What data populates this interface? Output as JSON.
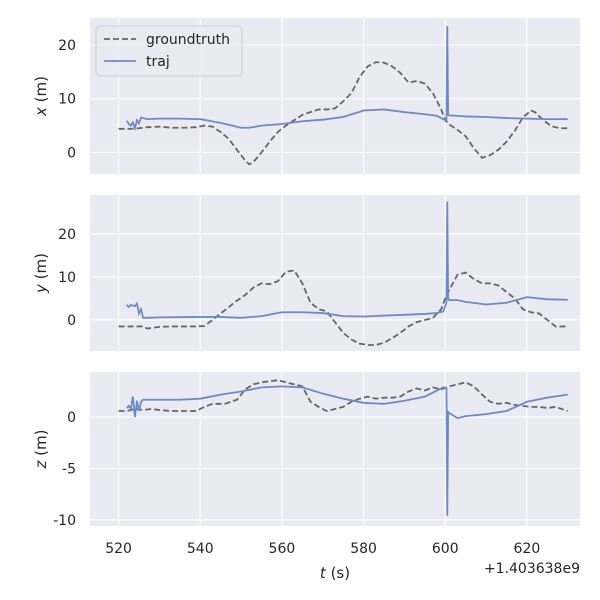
{
  "chart_data": {
    "type": "line",
    "shared_x": {
      "label": "t (s)",
      "label_var": "t",
      "label_unit": " (s)",
      "offset_label": "+1.403638e9",
      "range": [
        513,
        633
      ],
      "ticks": [
        520,
        540,
        560,
        580,
        600,
        620
      ]
    },
    "legend": {
      "placement": "top-left",
      "entries": [
        "groundtruth",
        "traj"
      ]
    },
    "colors": {
      "groundtruth": "#666666",
      "traj": "#6b8ac6"
    },
    "panels": [
      {
        "ylabel": "x (m)",
        "ylabel_var": "x",
        "ylabel_unit": " (m)",
        "ylim": [
          -4,
          25
        ],
        "yticks": [
          0,
          10,
          20
        ],
        "series": [
          {
            "name": "groundtruth",
            "style": "dashed",
            "x": [
              520,
              523,
              525,
              527,
              530,
              533,
              536,
              539,
              541,
              543,
              545,
              547,
              549,
              551,
              552,
              553,
              555,
              557,
              559,
              561,
              563,
              565,
              567,
              569,
              571,
              573,
              575,
              577,
              579,
              581,
              583,
              585,
              587,
              589,
              591,
              593,
              595,
              597,
              599,
              600,
              601,
              603,
              605,
              607,
              609,
              611,
              613,
              615,
              617,
              619,
              621,
              622,
              624,
              626,
              628,
              630
            ],
            "y": [
              4.4,
              4.4,
              4.5,
              4.7,
              4.8,
              4.6,
              4.6,
              4.7,
              5.0,
              4.8,
              3.8,
              2.5,
              0.5,
              -1.5,
              -2.2,
              -1.8,
              0.0,
              2.0,
              3.8,
              5.0,
              6.0,
              7.0,
              7.5,
              8.0,
              8.0,
              8.2,
              9.5,
              11.0,
              14.0,
              16.0,
              16.8,
              16.7,
              16.0,
              14.8,
              13.0,
              13.3,
              12.8,
              11.0,
              8.0,
              6.0,
              5.2,
              4.2,
              3.0,
              0.8,
              -1.0,
              -0.5,
              0.5,
              2.0,
              4.0,
              6.5,
              7.8,
              7.5,
              6.0,
              4.9,
              4.5,
              4.5
            ]
          },
          {
            "name": "traj",
            "style": "solid",
            "x": [
              522,
              522.5,
              523,
              523.5,
              524,
              524.5,
              525,
              525.5,
              526,
              527,
              530,
              535,
              540,
              545,
              550,
              552,
              555,
              560,
              565,
              570,
              575,
              580,
              585,
              590,
              595,
              598,
              599.5,
              600.3,
              600.5,
              600.7,
              601,
              603,
              605,
              610,
              615,
              620,
              625,
              630
            ],
            "y": [
              5.9,
              5.3,
              5.0,
              5.6,
              4.5,
              6.0,
              5.4,
              6.5,
              6.4,
              6.2,
              6.3,
              6.3,
              6.2,
              5.5,
              4.6,
              4.6,
              5.0,
              5.3,
              5.8,
              6.1,
              6.6,
              7.8,
              8.0,
              7.5,
              7.1,
              6.8,
              6.2,
              6.0,
              23.5,
              7.0,
              6.9,
              6.8,
              6.7,
              6.6,
              6.4,
              6.3,
              6.2,
              6.2
            ]
          }
        ]
      },
      {
        "ylabel": "y (m)",
        "ylabel_var": "y",
        "ylabel_unit": " (m)",
        "ylim": [
          -7.2,
          29
        ],
        "yticks": [
          0,
          10,
          20
        ],
        "series": [
          {
            "name": "groundtruth",
            "style": "dashed",
            "x": [
              520,
              524,
              526,
              527,
              530,
              533,
              536,
              539,
              541,
              543,
              545,
              547,
              549,
              551,
              553,
              555,
              557,
              559,
              561,
              563,
              565,
              567,
              569,
              571,
              573,
              575,
              577,
              579,
              581,
              583,
              585,
              587,
              589,
              591,
              593,
              595,
              597,
              599,
              600,
              601,
              603,
              605,
              607,
              609,
              611,
              613,
              615,
              617,
              619,
              621,
              623,
              625,
              627,
              630
            ],
            "y": [
              -1.5,
              -1.5,
              -1.5,
              -2.0,
              -1.6,
              -1.5,
              -1.5,
              -1.5,
              -1.4,
              0.0,
              1.5,
              3.0,
              4.5,
              5.8,
              7.5,
              8.5,
              8.3,
              9.0,
              11.2,
              11.5,
              8.5,
              4.0,
              2.5,
              2.0,
              -0.5,
              -3.0,
              -4.5,
              -5.5,
              -5.8,
              -5.8,
              -5.3,
              -4.2,
              -3.0,
              -1.5,
              -0.5,
              0.0,
              0.5,
              2.5,
              5.0,
              7.0,
              10.5,
              11.0,
              9.5,
              8.5,
              8.5,
              8.0,
              6.5,
              5.0,
              2.5,
              1.8,
              1.5,
              0.0,
              -1.5,
              -1.5
            ]
          },
          {
            "name": "traj",
            "style": "solid",
            "x": [
              522,
              522.5,
              523,
              524,
              524.5,
              525,
              525.5,
              526,
              526.5,
              527,
              530,
              540,
              545,
              550,
              555,
              560,
              565,
              570,
              575,
              580,
              585,
              590,
              595,
              598,
              599.5,
              600.3,
              600.5,
              600.7,
              601,
              603,
              605,
              610,
              615,
              620,
              625,
              630
            ],
            "y": [
              3.5,
              3.0,
              3.5,
              3.2,
              3.8,
              1.5,
              2.5,
              0.5,
              0.5,
              0.5,
              0.6,
              0.7,
              0.7,
              0.5,
              0.9,
              1.8,
              1.8,
              1.6,
              0.9,
              0.8,
              1.0,
              1.2,
              1.4,
              1.6,
              2.0,
              4.0,
              27.5,
              5.0,
              4.6,
              4.6,
              4.2,
              3.6,
              4.0,
              5.3,
              4.8,
              4.7
            ]
          }
        ]
      },
      {
        "ylabel": "z (m)",
        "ylabel_var": "z",
        "ylabel_unit": " (m)",
        "ylim": [
          -10.6,
          4.4
        ],
        "yticks": [
          -10,
          -5,
          0
        ],
        "series": [
          {
            "name": "groundtruth",
            "style": "dashed",
            "x": [
              520,
              522,
              524,
              526,
              528,
              530,
              533,
              536,
              539,
              541,
              543,
              546,
              549,
              551,
              553,
              555,
              557,
              559,
              561,
              563,
              565,
              567,
              569,
              571,
              573,
              575,
              577,
              579,
              581,
              583,
              585,
              587,
              589,
              591,
              593,
              595,
              597,
              599,
              601,
              603,
              605,
              607,
              609,
              611,
              613,
              615,
              617,
              619,
              621,
              623,
              625,
              627,
              630
            ],
            "y": [
              0.6,
              0.6,
              0.8,
              0.7,
              0.8,
              0.7,
              0.6,
              0.6,
              0.6,
              1.0,
              1.3,
              1.3,
              1.7,
              2.7,
              3.2,
              3.4,
              3.5,
              3.6,
              3.4,
              3.2,
              3.0,
              1.5,
              1.0,
              0.6,
              0.8,
              1.0,
              1.5,
              1.8,
              2.0,
              1.8,
              1.9,
              1.9,
              2.0,
              2.5,
              2.8,
              2.6,
              2.9,
              2.7,
              3.0,
              3.2,
              3.4,
              3.0,
              2.2,
              1.5,
              1.3,
              1.4,
              1.2,
              1.1,
              1.0,
              1.0,
              0.9,
              1.0,
              0.6
            ]
          },
          {
            "name": "traj",
            "style": "solid",
            "x": [
              522,
              522.5,
              523,
              523.5,
              524,
              524.5,
              525,
              525.5,
              526,
              527,
              530,
              535,
              540,
              545,
              550,
              555,
              560,
              565,
              570,
              575,
              580,
              585,
              590,
              595,
              598,
              599.5,
              600.3,
              600.5,
              600.7,
              601,
              603,
              605,
              610,
              615,
              620,
              625,
              630
            ],
            "y": [
              0.9,
              1.1,
              0.8,
              2.0,
              0.0,
              1.6,
              0.6,
              1.5,
              1.7,
              1.7,
              1.7,
              1.7,
              1.8,
              2.2,
              2.5,
              2.9,
              3.0,
              2.9,
              2.3,
              1.8,
              1.4,
              1.3,
              1.6,
              2.0,
              2.6,
              2.9,
              2.8,
              -9.6,
              0.5,
              0.4,
              -0.1,
              0.1,
              0.3,
              0.6,
              1.5,
              1.9,
              2.2
            ]
          }
        ]
      }
    ]
  }
}
